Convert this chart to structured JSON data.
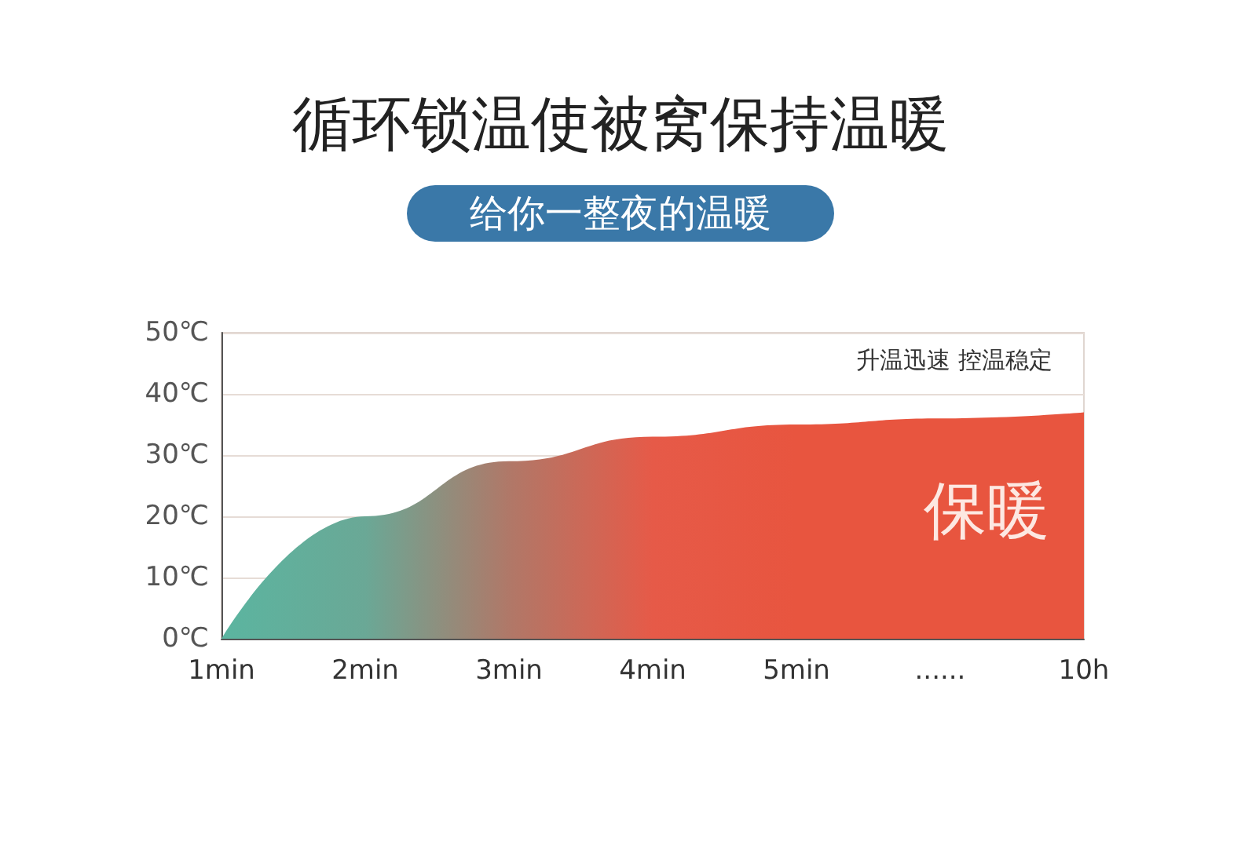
{
  "chart_data": {
    "type": "area",
    "title": "循环锁温使被窝保持温暖",
    "subtitle": "给你一整夜的温暖",
    "categories": [
      "1min",
      "2min",
      "3min",
      "4min",
      "5min",
      "......",
      "10h"
    ],
    "series": [
      {
        "values": [
          0,
          20,
          29,
          33,
          35,
          36,
          37
        ],
        "colors": [
          "#5bb5a0",
          "#6aa896",
          "#b07868",
          "#e65a48",
          "#e8553f",
          "#e8553f",
          "#e8553f"
        ]
      }
    ],
    "ylim": [
      0,
      50
    ],
    "yticks": [
      {
        "value": 0,
        "label": "0℃"
      },
      {
        "value": 10,
        "label": "10℃"
      },
      {
        "value": 20,
        "label": "20℃"
      },
      {
        "value": 30,
        "label": "30℃"
      },
      {
        "value": 40,
        "label": "40℃"
      },
      {
        "value": 50,
        "label": "50℃"
      }
    ],
    "grid": "y",
    "marker": "none",
    "annotations": [
      "升温迅速 控温稳定",
      "保暖"
    ]
  }
}
